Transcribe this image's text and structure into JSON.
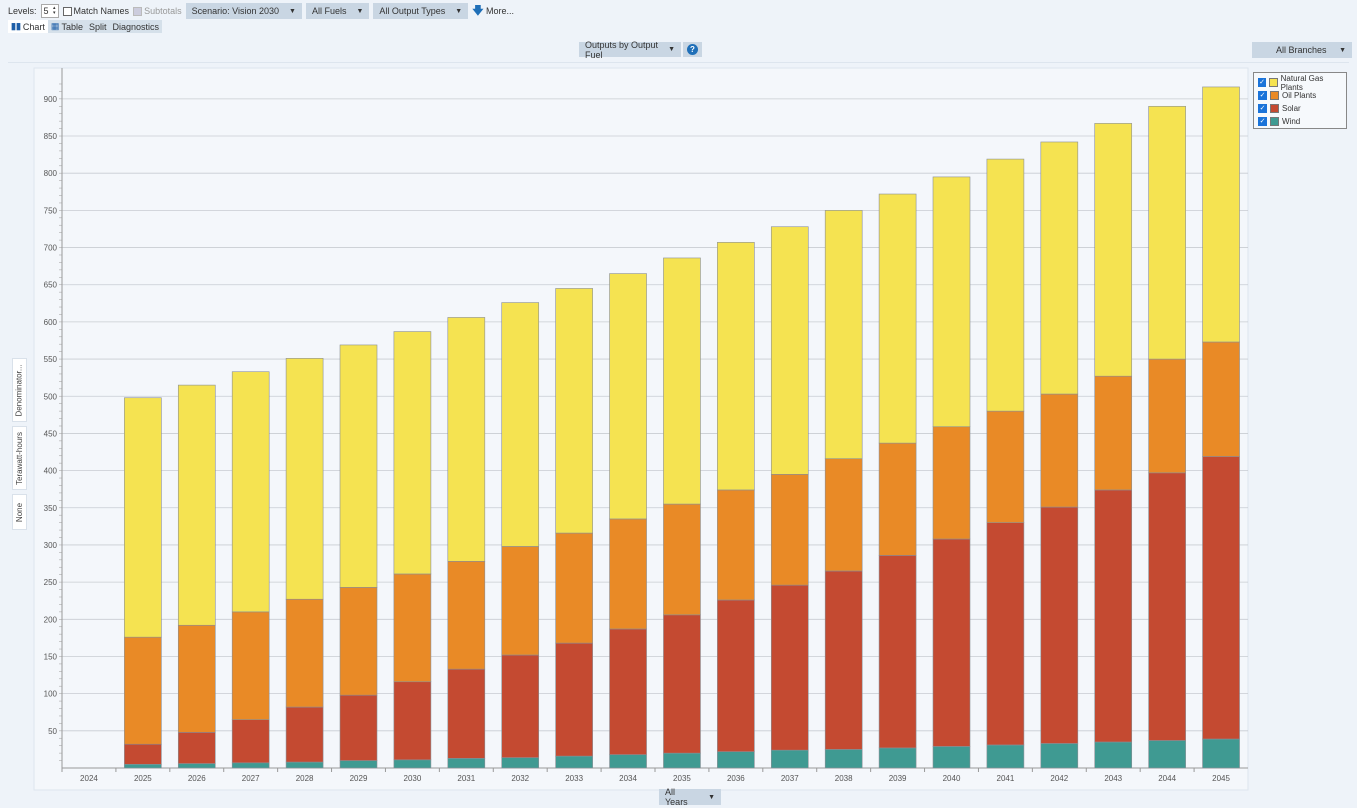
{
  "toolbar": {
    "levels_label": "Levels:",
    "levels_value": "5",
    "match_names": "Match Names",
    "subtotals": "Subtotals",
    "scenario": "Scenario: Vision 2030",
    "fuels": "All Fuels",
    "output_types": "All Output Types",
    "more": "More..."
  },
  "tabs": [
    "Chart",
    "Table",
    "Split",
    "Diagnostics"
  ],
  "view_select": "Outputs by Output Fuel",
  "help": "?",
  "branches": "All Branches",
  "years_select": "All Years",
  "side_buttons": [
    "Denominator...",
    "Terawatt-hours",
    "None"
  ],
  "chart_data": {
    "type": "bar",
    "stacked": true,
    "categories": [
      "2024",
      "2025",
      "2026",
      "2027",
      "2028",
      "2029",
      "2030",
      "2031",
      "2032",
      "2033",
      "2034",
      "2035",
      "2036",
      "2037",
      "2038",
      "2039",
      "2040",
      "2041",
      "2042",
      "2043",
      "2044",
      "2045"
    ],
    "ylim": [
      0,
      930
    ],
    "yticks": [
      50,
      100,
      150,
      200,
      250,
      300,
      350,
      400,
      450,
      500,
      550,
      600,
      650,
      700,
      750,
      800,
      850,
      900
    ],
    "grid": true,
    "legend": "top-right",
    "ylabel": "Terawatt-hours",
    "series": [
      {
        "name": "Wind",
        "color": "#3f9a92",
        "values": [
          0,
          5,
          6,
          7,
          8,
          10,
          11,
          13,
          14,
          16,
          18,
          20,
          22,
          24,
          25,
          27,
          29,
          31,
          33,
          35,
          37,
          39
        ]
      },
      {
        "name": "Solar",
        "color": "#c44a31",
        "values": [
          0,
          27,
          42,
          58,
          74,
          88,
          105,
          120,
          138,
          152,
          169,
          186,
          204,
          222,
          240,
          259,
          279,
          299,
          318,
          339,
          360,
          380
        ]
      },
      {
        "name": "Oil Plants",
        "color": "#e98a26",
        "values": [
          0,
          144,
          144,
          145,
          145,
          145,
          145,
          145,
          146,
          148,
          148,
          149,
          148,
          149,
          151,
          151,
          151,
          150,
          152,
          153,
          153,
          154
        ]
      },
      {
        "name": "Natural Gas Plants",
        "color": "#f5e351",
        "values": [
          0,
          322,
          323,
          323,
          324,
          326,
          326,
          328,
          328,
          329,
          330,
          331,
          333,
          333,
          334,
          335,
          336,
          339,
          339,
          340,
          340,
          343
        ]
      }
    ]
  }
}
